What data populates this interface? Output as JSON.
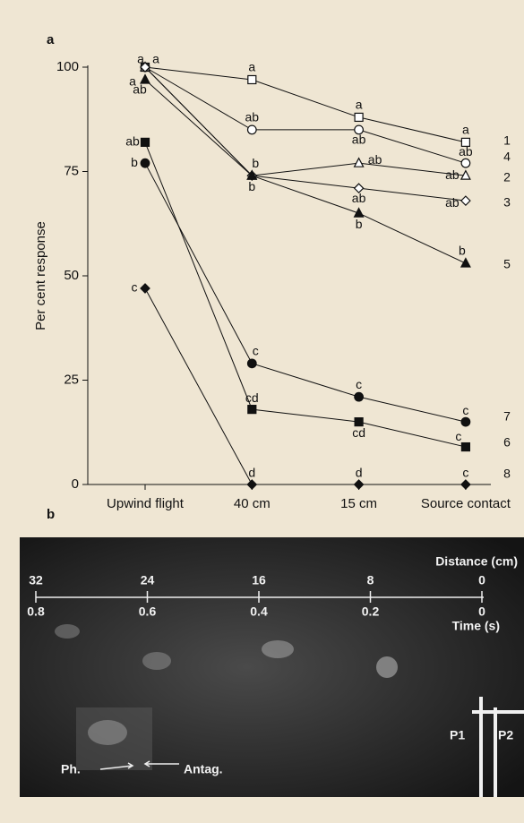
{
  "chart_data": {
    "type": "line",
    "panel_label": "a",
    "ylabel": "Per cent response",
    "categories": [
      "Upwind flight",
      "40 cm",
      "15 cm",
      "Source contact"
    ],
    "ylim": [
      0,
      100
    ],
    "yticks": [
      0,
      25,
      50,
      75,
      100
    ],
    "color": "#111111",
    "series": [
      {
        "name": "1",
        "marker": "square",
        "filled": false,
        "values": [
          100,
          97,
          88,
          82
        ],
        "letters": [
          "a",
          "a",
          "a",
          "a"
        ]
      },
      {
        "name": "4",
        "marker": "circle",
        "filled": false,
        "values": [
          100,
          85,
          85,
          77
        ],
        "letters": [
          "a",
          "ab",
          "ab",
          "ab"
        ]
      },
      {
        "name": "2",
        "marker": "triangle",
        "filled": false,
        "values": [
          100,
          74,
          77,
          74
        ],
        "letters": [
          "a",
          null,
          "ab",
          "ab"
        ]
      },
      {
        "name": "3",
        "marker": "diamond",
        "filled": false,
        "values": [
          100,
          74,
          71,
          68
        ],
        "letters": [
          null,
          "b",
          "ab",
          "ab"
        ]
      },
      {
        "name": "5",
        "marker": "triangle",
        "filled": true,
        "values": [
          97,
          74,
          65,
          53
        ],
        "letters": [
          "ab",
          "b",
          "b",
          "b"
        ]
      },
      {
        "name": "7",
        "marker": "circle",
        "filled": true,
        "values": [
          77,
          29,
          21,
          15
        ],
        "letters": [
          "b",
          "c",
          "c",
          "c"
        ]
      },
      {
        "name": "6",
        "marker": "square",
        "filled": true,
        "values": [
          82,
          18,
          15,
          9
        ],
        "letters": [
          "ab",
          "cd",
          "cd",
          "c"
        ]
      },
      {
        "name": "8",
        "marker": "diamond",
        "filled": true,
        "values": [
          47,
          0,
          0,
          0
        ],
        "letters": [
          "c",
          "d",
          "d",
          "c"
        ]
      }
    ]
  },
  "photo": {
    "panel_label": "b",
    "distance_label": "Distance (cm)",
    "time_label": "Time (s)",
    "distance_ticks": [
      32,
      24,
      16,
      8,
      0
    ],
    "time_ticks": [
      0.8,
      0.6,
      0.4,
      0.2,
      0
    ],
    "labels": {
      "ph": "Ph.",
      "antag": "Antag.",
      "p1": "P1",
      "p2": "P2"
    }
  }
}
